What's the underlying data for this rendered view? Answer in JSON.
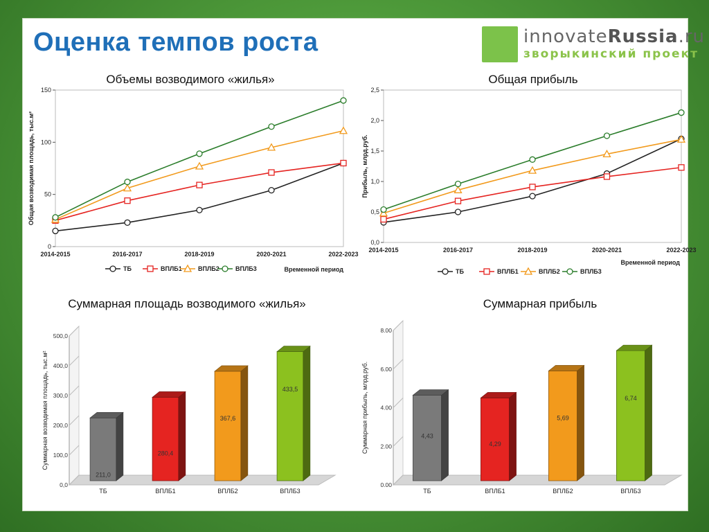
{
  "slide": {
    "title": "Оценка темпов роста",
    "logo": {
      "main_light": "innovate",
      "main_bold": "Russia",
      "main_suffix": ".ru",
      "sub": "зворыкинский проект"
    },
    "captions": {
      "top_left": "Объемы возводимого «жилья»",
      "top_right": "Общая прибыль",
      "bottom_left": "Суммарная площадь возводимого «жилья»",
      "bottom_right": "Суммарная прибыль"
    }
  },
  "colors": {
    "tb": "#222222",
    "vplb1": "#e52421",
    "vplb2": "#f29a1c",
    "vplb3": "#2b7d2b",
    "title": "#1f6fb8"
  },
  "chart_data": [
    {
      "type": "line",
      "title": "Объемы возводимого «жилья»",
      "ylabel": "Общая возводимая площадь, тыс.м²",
      "xlabel": "Временной период",
      "categories": [
        "2014-2015",
        "2016-2017",
        "2018-2019",
        "2020-2021",
        "2022-2023"
      ],
      "ylim": [
        0,
        150
      ],
      "yticks": [
        "0",
        "50",
        "100",
        "150"
      ],
      "series": [
        {
          "name": "ТБ",
          "values": [
            15,
            23,
            35,
            54,
            80
          ]
        },
        {
          "name": "ВПЛБ1",
          "values": [
            25,
            44,
            59,
            71,
            80
          ]
        },
        {
          "name": "ВПЛБ2",
          "values": [
            26,
            56,
            77,
            95,
            111
          ]
        },
        {
          "name": "ВПЛБ3",
          "values": [
            28,
            62,
            89,
            115,
            140
          ]
        }
      ]
    },
    {
      "type": "line",
      "title": "Общая прибыль",
      "ylabel": "Прибыль, млрд.руб.",
      "xlabel": "Временной период",
      "categories": [
        "2014-2015",
        "2016-2017",
        "2018-2019",
        "2020-2021",
        "2022-2023"
      ],
      "ylim": [
        0,
        2.5
      ],
      "yticks": [
        "0,0",
        "0,5",
        "1,0",
        "1,5",
        "2,0",
        "2,5"
      ],
      "series": [
        {
          "name": "ТБ",
          "values": [
            0.33,
            0.5,
            0.76,
            1.13,
            1.7
          ]
        },
        {
          "name": "ВПЛБ1",
          "values": [
            0.38,
            0.68,
            0.91,
            1.08,
            1.23
          ]
        },
        {
          "name": "ВПЛБ2",
          "values": [
            0.48,
            0.86,
            1.18,
            1.45,
            1.69
          ]
        },
        {
          "name": "ВПЛБ3",
          "values": [
            0.54,
            0.96,
            1.36,
            1.75,
            2.13
          ]
        }
      ]
    },
    {
      "type": "bar",
      "title": "Суммарная площадь возводимого «жилья»",
      "ylabel": "Суммарная возводимая площадь, тыс.м²",
      "categories": [
        "ТБ",
        "ВПЛБ1",
        "ВПЛБ2",
        "ВПЛБ3"
      ],
      "values": [
        211.0,
        280.4,
        367.6,
        433.5
      ],
      "value_labels": [
        "211,0",
        "280,4",
        "367,6",
        "433,5"
      ],
      "ylim": [
        0,
        500
      ],
      "yticks": [
        "0,0",
        "100,0",
        "200,0",
        "300,0",
        "400,0",
        "500,0"
      ]
    },
    {
      "type": "bar",
      "title": "Суммарная прибыль",
      "ylabel": "Суммарная прибыль, млрд.руб.",
      "categories": [
        "ТБ",
        "ВПЛБ1",
        "ВПЛБ2",
        "ВПЛБ3"
      ],
      "values": [
        4.43,
        4.29,
        5.69,
        6.74
      ],
      "value_labels": [
        "4,43",
        "4,29",
        "5,69",
        "6,74"
      ],
      "ylim": [
        0,
        8
      ],
      "yticks": [
        "0.00",
        "2.00",
        "4.00",
        "6.00",
        "8.00"
      ]
    }
  ]
}
